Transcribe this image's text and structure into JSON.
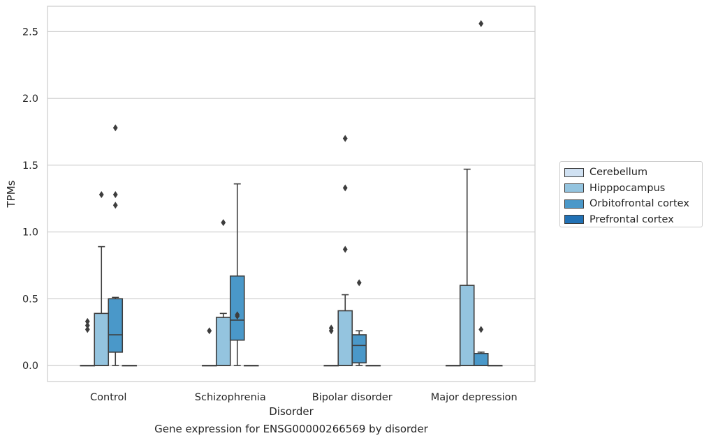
{
  "caption": "Gene expression for ENSG00000266569 by disorder",
  "chart_data": {
    "type": "box",
    "xlabel": "Disorder",
    "ylabel": "TPMs",
    "categories": [
      "Control",
      "Schizophrenia",
      "Bipolar disorder",
      "Major depression"
    ],
    "ylim": [
      -0.12,
      2.69
    ],
    "yticks": [
      "0.0",
      "0.5",
      "1.0",
      "1.5",
      "2.0",
      "2.5"
    ],
    "grid": true,
    "legend_position": "right",
    "series": [
      {
        "name": "Cerebellum",
        "color": "#d0e1f2",
        "boxes": [
          {
            "min": 0,
            "q1": 0,
            "median": 0,
            "q3": 0,
            "max": 0,
            "outliers": [
              0.27,
              0.3,
              0.33
            ]
          },
          {
            "min": 0,
            "q1": 0,
            "median": 0,
            "q3": 0,
            "max": 0,
            "outliers": [
              0.26
            ]
          },
          {
            "min": 0,
            "q1": 0,
            "median": 0,
            "q3": 0,
            "max": 0,
            "outliers": [
              0.26,
              0.28
            ]
          },
          {
            "min": 0,
            "q1": 0,
            "median": 0,
            "q3": 0,
            "max": 0,
            "outliers": []
          }
        ]
      },
      {
        "name": "Hipppocampus",
        "color": "#94c4df",
        "boxes": [
          {
            "min": 0,
            "q1": 0,
            "median": 0,
            "q3": 0.39,
            "max": 0.89,
            "outliers": [
              1.28
            ]
          },
          {
            "min": 0,
            "q1": 0,
            "median": 0,
            "q3": 0.36,
            "max": 0.39,
            "outliers": [
              1.07
            ]
          },
          {
            "min": 0,
            "q1": 0,
            "median": 0,
            "q3": 0.41,
            "max": 0.53,
            "outliers": [
              0.87,
              1.33,
              1.7
            ]
          },
          {
            "min": 0,
            "q1": 0,
            "median": 0,
            "q3": 0.6,
            "max": 1.47,
            "outliers": []
          }
        ]
      },
      {
        "name": "Orbitofrontal cortex",
        "color": "#4a98c9",
        "boxes": [
          {
            "min": 0,
            "q1": 0.1,
            "median": 0.23,
            "q3": 0.5,
            "max": 0.51,
            "outliers": [
              1.2,
              1.28,
              1.78
            ]
          },
          {
            "min": 0,
            "q1": 0.19,
            "median": 0.34,
            "q3": 0.67,
            "max": 1.36,
            "outliers": [
              0.37,
              0.38
            ]
          },
          {
            "min": 0,
            "q1": 0.02,
            "median": 0.15,
            "q3": 0.23,
            "max": 0.26,
            "outliers": [
              0.62
            ]
          },
          {
            "min": 0,
            "q1": 0,
            "median": 0,
            "q3": 0.09,
            "max": 0.1,
            "outliers": [
              0.27,
              2.56
            ]
          }
        ]
      },
      {
        "name": "Prefrontal cortex",
        "color": "#2171b5",
        "boxes": [
          {
            "min": 0,
            "q1": 0,
            "median": 0,
            "q3": 0,
            "max": 0,
            "outliers": []
          },
          {
            "min": 0,
            "q1": 0,
            "median": 0,
            "q3": 0,
            "max": 0,
            "outliers": []
          },
          {
            "min": 0,
            "q1": 0,
            "median": 0,
            "q3": 0,
            "max": 0,
            "outliers": []
          },
          {
            "min": 0,
            "q1": 0,
            "median": 0,
            "q3": 0,
            "max": 0,
            "outliers": []
          }
        ]
      }
    ]
  }
}
